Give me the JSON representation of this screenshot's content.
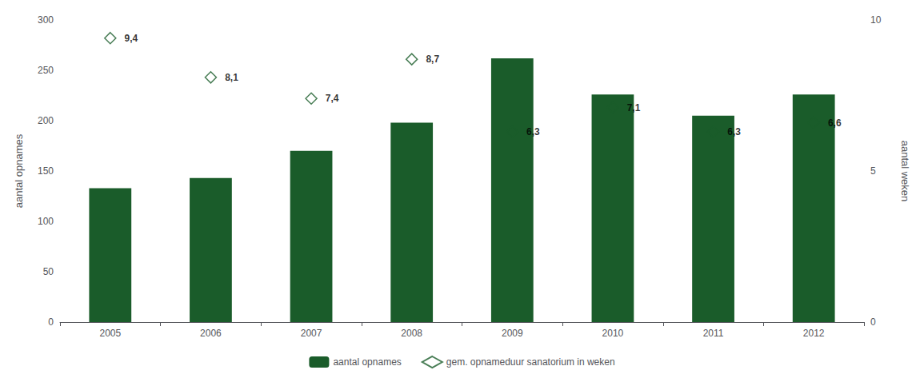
{
  "chart_data": {
    "type": "bar",
    "categories": [
      "2005",
      "2006",
      "2007",
      "2008",
      "2009",
      "2010",
      "2011",
      "2012"
    ],
    "series": [
      {
        "name": "aantal opnames",
        "type": "bar",
        "axis": "y",
        "color": "#1a5c2a",
        "values": [
          133,
          143,
          170,
          198,
          262,
          226,
          205,
          226
        ]
      },
      {
        "name": "gem. opnameduur sanatorium in weken",
        "type": "scatter",
        "axis": "y2",
        "marker": "diamond",
        "color": "#1a5c2a",
        "colors": [
          "#ffffff",
          "#ffffff",
          "#ffffff",
          "#ffffff",
          "#1a5c2a",
          "#1a5c2a",
          "#1a5c2a",
          "#1a5c2a"
        ],
        "data_labels": true,
        "values": [
          9.4,
          8.1,
          7.4,
          8.7,
          6.3,
          7.1,
          6.3,
          6.6
        ],
        "value_labels": [
          "9,4",
          "8,1",
          "7,4",
          "8,7",
          "6,3",
          "7,1",
          "6,3",
          "6,6"
        ]
      }
    ],
    "ylabel": "aantal opnames",
    "y2label": "aantal weken",
    "ylim": [
      0,
      300
    ],
    "yticks": [
      0,
      50,
      100,
      150,
      200,
      250,
      300
    ],
    "y2lim": [
      0,
      10
    ],
    "y2ticks": [
      0,
      5,
      10
    ],
    "grid": false,
    "legend": "bottom"
  }
}
